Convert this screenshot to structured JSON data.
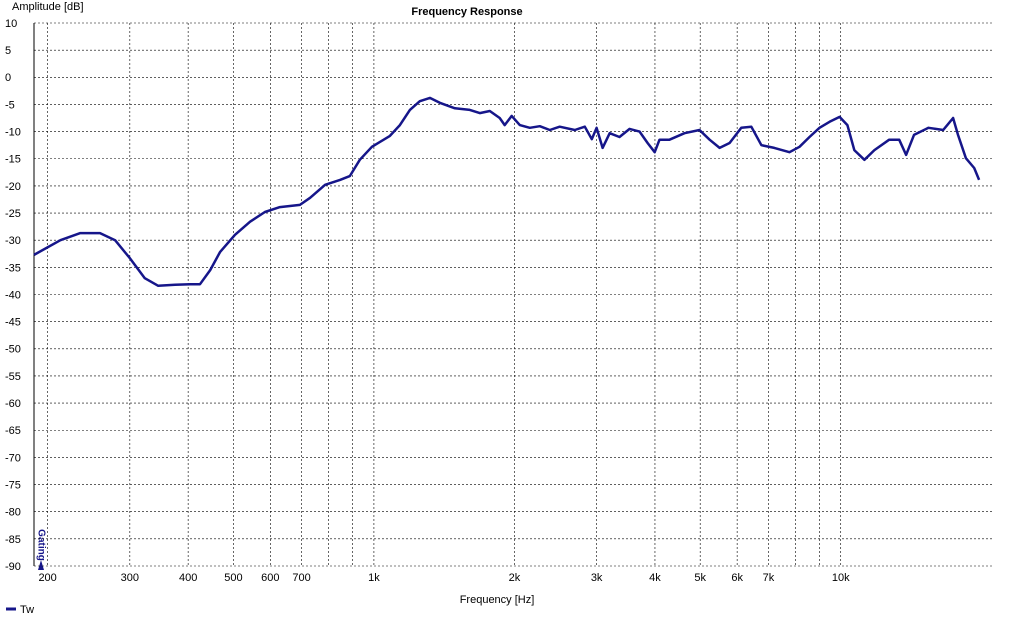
{
  "chart_data": {
    "type": "line",
    "title": "Frequency Response",
    "ylabel": "Amplitude [dB]",
    "xlabel": "Frequency [Hz]",
    "xscale": "log",
    "grid": true,
    "legend": "bottom-left",
    "annotation": "Gating",
    "xlim": [
      187,
      21300
    ],
    "ylim": [
      -90,
      10
    ],
    "xticks": [
      200,
      300,
      400,
      500,
      600,
      700,
      {
        "value": 1000,
        "label": "1k"
      },
      {
        "value": 2000,
        "label": "2k"
      },
      {
        "value": 3000,
        "label": "3k"
      },
      {
        "value": 4000,
        "label": "4k"
      },
      {
        "value": 5000,
        "label": "5k"
      },
      {
        "value": 6000,
        "label": "6k"
      },
      {
        "value": 7000,
        "label": "7k"
      },
      {
        "value": 10000,
        "label": "10k"
      }
    ],
    "xgrid_minor": [
      800,
      900,
      8000,
      9000
    ],
    "yticks": [
      10,
      5,
      0,
      -5,
      -10,
      -15,
      -20,
      -25,
      -30,
      -35,
      -40,
      -45,
      -50,
      -55,
      -60,
      -65,
      -70,
      -75,
      -80,
      -85,
      -90
    ],
    "x": [
      187,
      213,
      235,
      259,
      279,
      300,
      323,
      345,
      375,
      404,
      424,
      446,
      468,
      504,
      543,
      584,
      629,
      694,
      730,
      786,
      846,
      888,
      933,
      990,
      1082,
      1137,
      1194,
      1254,
      1318,
      1384,
      1491,
      1605,
      1686,
      1771,
      1860,
      1906,
      1973,
      2054,
      2158,
      2267,
      2381,
      2500,
      2694,
      2830,
      2929,
      3000,
      3090,
      3200,
      3359,
      3529,
      3709,
      3857,
      3995,
      4090,
      4297,
      4628,
      4984,
      5238,
      5502,
      5781,
      6125,
      6433,
      6761,
      7206,
      7769,
      8159,
      8574,
      9008,
      9465,
      9944,
      10336,
      10695,
      11240,
      11810,
      12703,
      13346,
      13806,
      14354,
      15423,
      16575,
      17412,
      17838,
      18542,
      19320,
      19794
    ],
    "series": [
      {
        "name": "Tw",
        "color": "#16168a",
        "values": [
          -32.7,
          -30,
          -28.7,
          -28.7,
          -30,
          -33.3,
          -37,
          -38.4,
          -38.2,
          -38.1,
          -38.1,
          -35.5,
          -32.2,
          -29,
          -26.6,
          -24.8,
          -23.9,
          -23.5,
          -22.2,
          -19.8,
          -18.9,
          -18.2,
          -15.2,
          -12.8,
          -10.8,
          -8.8,
          -6,
          -4.4,
          -3.8,
          -4.7,
          -5.7,
          -6,
          -6.6,
          -6.2,
          -7.5,
          -8.8,
          -7.1,
          -8.8,
          -9.3,
          -9,
          -9.7,
          -9.1,
          -9.7,
          -9.1,
          -11.4,
          -9.3,
          -13,
          -10.3,
          -11,
          -9.5,
          -10,
          -12.1,
          -13.8,
          -11.5,
          -11.5,
          -10.3,
          -9.7,
          -11.5,
          -13,
          -12.1,
          -9.3,
          -9.1,
          -12.5,
          -13,
          -13.8,
          -12.8,
          -11,
          -9.3,
          -8.2,
          -7.3,
          -8.8,
          -13.4,
          -15.2,
          -13.4,
          -11.5,
          -11.5,
          -14.3,
          -10.6,
          -9.3,
          -9.7,
          -7.5,
          -10.6,
          -14.9,
          -16.7,
          -18.9
        ]
      }
    ]
  }
}
